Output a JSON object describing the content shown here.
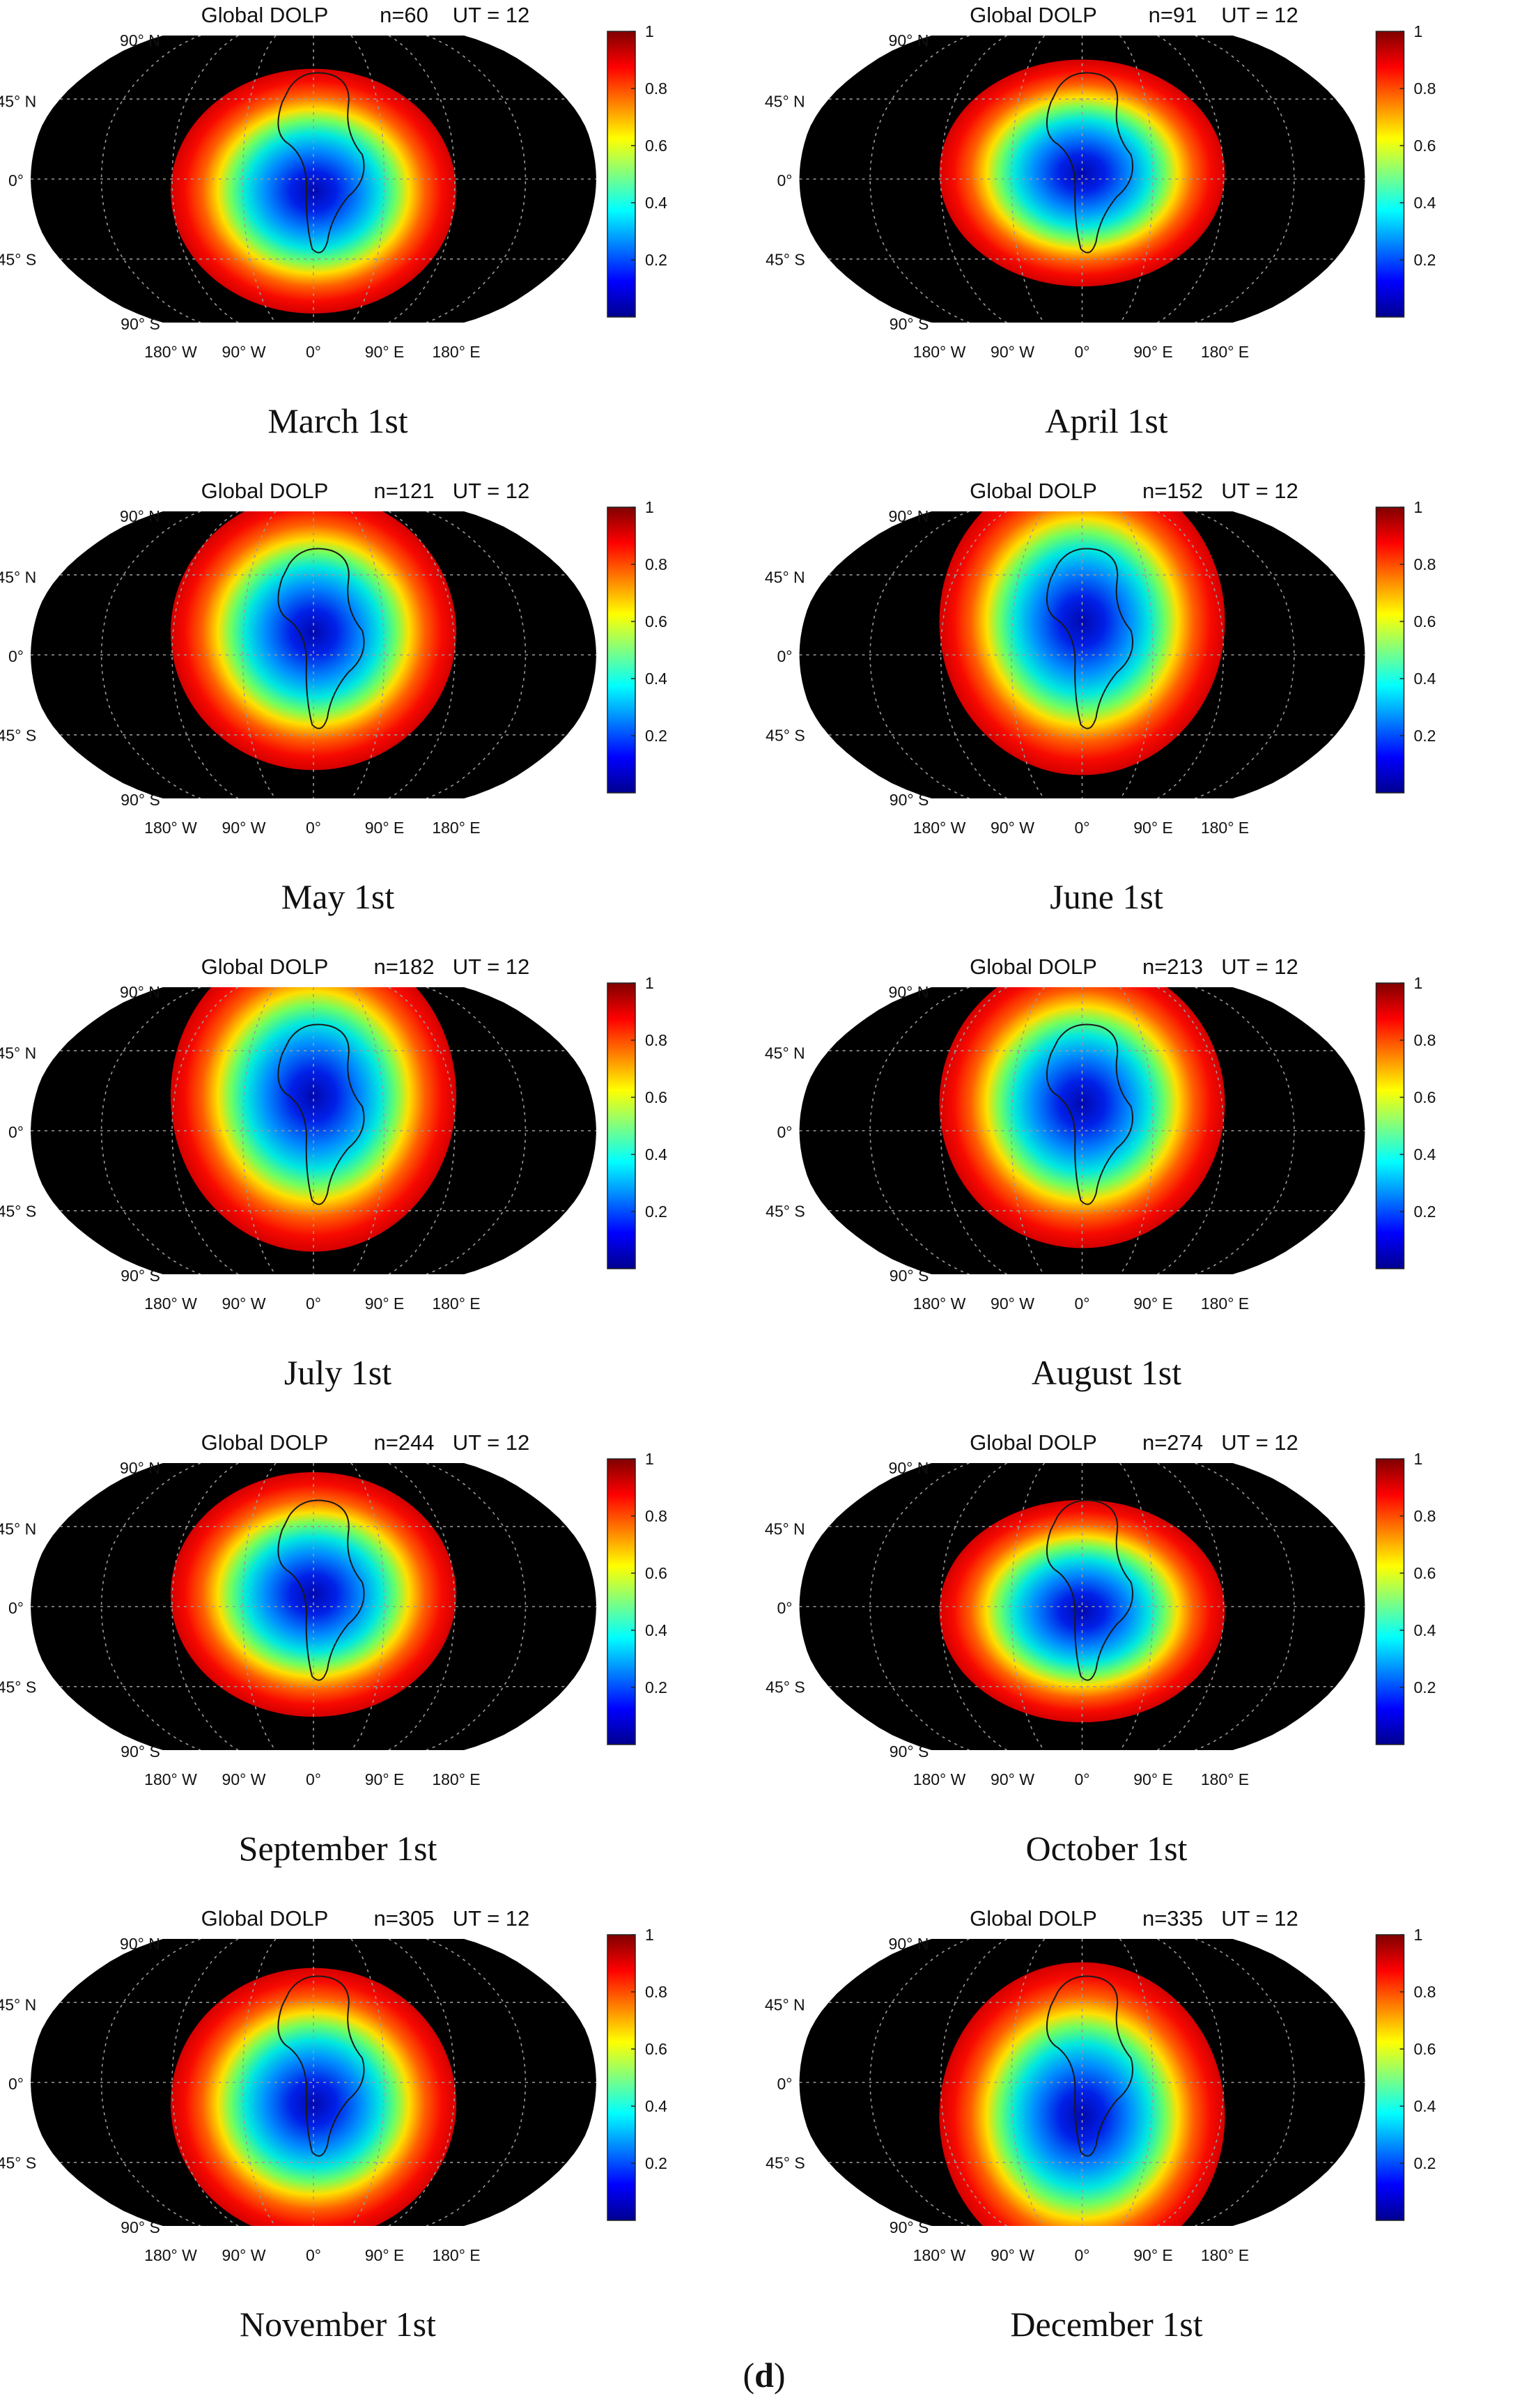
{
  "colorbar_ticks": [
    "1",
    "0.8",
    "0.6",
    "0.4",
    "0.2"
  ],
  "lat_ticks": [
    "90° N",
    "45° N",
    "0°",
    "45° S",
    "90° S"
  ],
  "lon_ticks": [
    "180° W",
    "90° W",
    "0°",
    "90° E",
    "180° E"
  ],
  "subfigure_label": "d",
  "colors": {
    "background_night": "#000000",
    "colormap": "jet",
    "gridline": "#9a9a9a",
    "coast": "#1a1a1a"
  },
  "chart_data": [
    {
      "type": "heatmap",
      "title_prefix": "Global DOLP",
      "n_label": "n=60",
      "ut_label": "UT = 12",
      "day_of_year": 60,
      "ut_hour": 12,
      "caption": "March 1st",
      "projection": "Robinson",
      "colorbar_range": [
        0,
        1
      ],
      "min_dolp_center_lonlat": [
        0,
        -8
      ]
    },
    {
      "type": "heatmap",
      "title_prefix": "Global DOLP",
      "n_label": "n=91",
      "ut_label": "UT = 12",
      "day_of_year": 91,
      "ut_hour": 12,
      "caption": "April 1st",
      "projection": "Robinson",
      "colorbar_range": [
        0,
        1
      ],
      "min_dolp_center_lonlat": [
        0,
        4
      ]
    },
    {
      "type": "heatmap",
      "title_prefix": "Global DOLP",
      "n_label": "n=121",
      "ut_label": "UT = 12",
      "day_of_year": 121,
      "ut_hour": 12,
      "caption": "May 1st",
      "projection": "Robinson",
      "colorbar_range": [
        0,
        1
      ],
      "min_dolp_center_lonlat": [
        0,
        15
      ]
    },
    {
      "type": "heatmap",
      "title_prefix": "Global DOLP",
      "n_label": "n=152",
      "ut_label": "UT = 12",
      "day_of_year": 152,
      "ut_hour": 12,
      "caption": "June 1st",
      "projection": "Robinson",
      "colorbar_range": [
        0,
        1
      ],
      "min_dolp_center_lonlat": [
        0,
        22
      ]
    },
    {
      "type": "heatmap",
      "title_prefix": "Global DOLP",
      "n_label": "n=182",
      "ut_label": "UT = 12",
      "day_of_year": 182,
      "ut_hour": 12,
      "caption": "July 1st",
      "projection": "Robinson",
      "colorbar_range": [
        0,
        1
      ],
      "min_dolp_center_lonlat": [
        0,
        23
      ]
    },
    {
      "type": "heatmap",
      "title_prefix": "Global DOLP",
      "n_label": "n=213",
      "ut_label": "UT = 12",
      "day_of_year": 213,
      "ut_hour": 12,
      "caption": "August 1st",
      "projection": "Robinson",
      "colorbar_range": [
        0,
        1
      ],
      "min_dolp_center_lonlat": [
        0,
        18
      ]
    },
    {
      "type": "heatmap",
      "title_prefix": "Global DOLP",
      "n_label": "n=244",
      "ut_label": "UT = 12",
      "day_of_year": 244,
      "ut_hour": 12,
      "caption": "September 1st",
      "projection": "Robinson",
      "colorbar_range": [
        0,
        1
      ],
      "min_dolp_center_lonlat": [
        0,
        8
      ]
    },
    {
      "type": "heatmap",
      "title_prefix": "Global DOLP",
      "n_label": "n=274",
      "ut_label": "UT = 12",
      "day_of_year": 274,
      "ut_hour": 12,
      "caption": "October 1st",
      "projection": "Robinson",
      "colorbar_range": [
        0,
        1
      ],
      "min_dolp_center_lonlat": [
        0,
        -3
      ]
    },
    {
      "type": "heatmap",
      "title_prefix": "Global DOLP",
      "n_label": "n=305",
      "ut_label": "UT = 12",
      "day_of_year": 305,
      "ut_hour": 12,
      "caption": "November 1st",
      "projection": "Robinson",
      "colorbar_range": [
        0,
        1
      ],
      "min_dolp_center_lonlat": [
        0,
        -14
      ]
    },
    {
      "type": "heatmap",
      "title_prefix": "Global DOLP",
      "n_label": "n=335",
      "ut_label": "UT = 12",
      "day_of_year": 335,
      "ut_hour": 12,
      "caption": "December 1st",
      "projection": "Robinson",
      "colorbar_range": [
        0,
        1
      ],
      "min_dolp_center_lonlat": [
        0,
        -22
      ]
    }
  ]
}
